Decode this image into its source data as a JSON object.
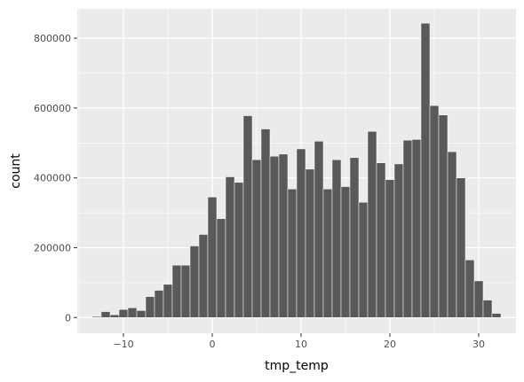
{
  "chart_data": {
    "type": "bar",
    "xlabel": "tmp_temp",
    "ylabel": "count",
    "xlim": [
      -15.2,
      34.2
    ],
    "ylim": [
      -45000,
      884000
    ],
    "x_ticks": [
      -10,
      0,
      10,
      20,
      30
    ],
    "x_tick_labels": [
      "−10",
      "0",
      "10",
      "20",
      "30"
    ],
    "y_ticks": [
      0,
      200000,
      400000,
      600000,
      800000
    ],
    "y_tick_labels": [
      "0",
      "200000",
      "400000",
      "600000",
      "800000"
    ],
    "grid": true,
    "colors": {
      "panel": "#ebebeb",
      "grid": "#ffffff",
      "bar": "#595959"
    },
    "bin_width": 1.0,
    "bins_x": [
      -13,
      -12,
      -11,
      -10,
      -9,
      -8,
      -7,
      -6,
      -5,
      -4,
      -3,
      -2,
      -1,
      0,
      1,
      2,
      3,
      4,
      5,
      6,
      7,
      8,
      9,
      10,
      11,
      12,
      13,
      14,
      15,
      16,
      17,
      18,
      19,
      20,
      21,
      22,
      23,
      24,
      25,
      26,
      27,
      28,
      29,
      30,
      31,
      32
    ],
    "counts": [
      3000,
      17000,
      8000,
      23000,
      28000,
      20000,
      60000,
      78000,
      95000,
      150000,
      150000,
      205000,
      238000,
      345000,
      283000,
      403000,
      387000,
      578000,
      452000,
      540000,
      462000,
      468000,
      368000,
      483000,
      425000,
      505000,
      368000,
      452000,
      375000,
      458000,
      330000,
      533000,
      443000,
      395000,
      440000,
      508000,
      510000,
      843000,
      607000,
      580000,
      475000,
      400000,
      165000,
      105000,
      50000,
      12000
    ]
  }
}
